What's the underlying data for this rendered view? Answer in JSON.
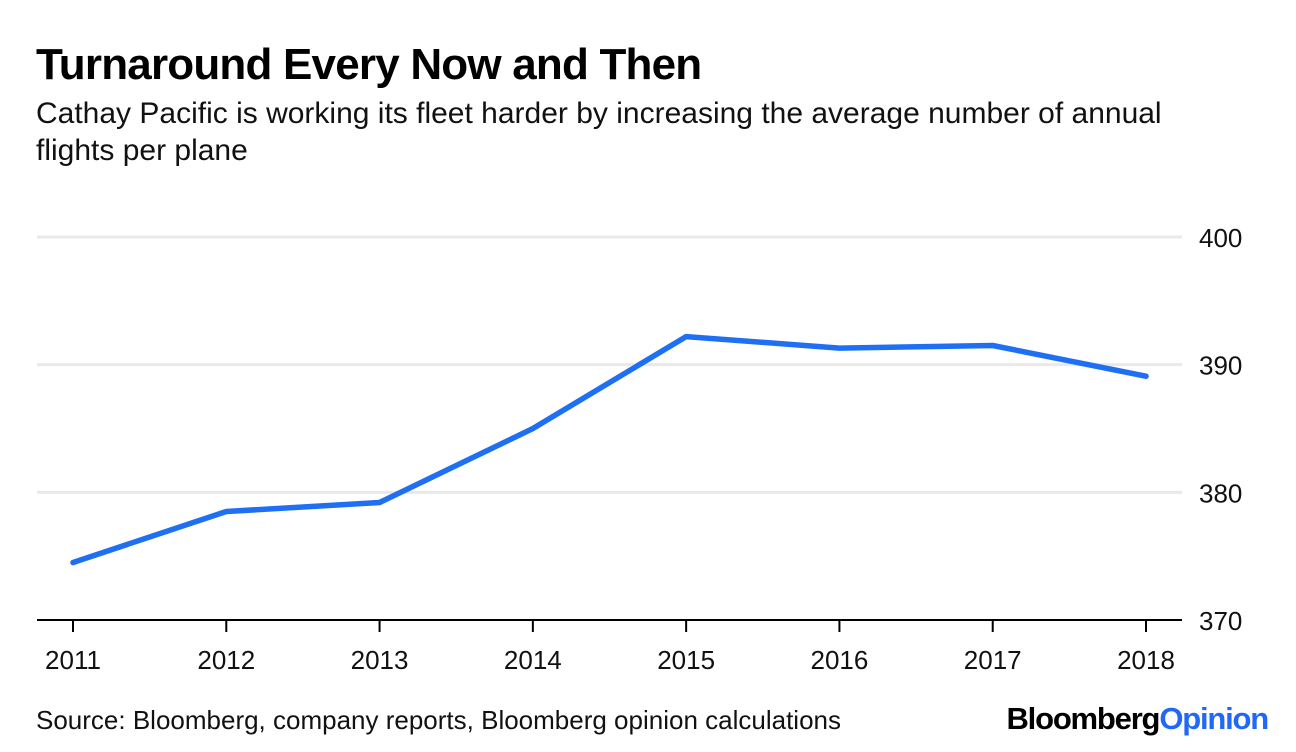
{
  "chart_data": {
    "type": "line",
    "title": "Turnaround Every Now and Then",
    "subtitle": "Cathay Pacific is working its fleet harder by increasing the average number of annual flights per plane",
    "categories": [
      "2011",
      "2012",
      "2013",
      "2014",
      "2015",
      "2016",
      "2017",
      "2018"
    ],
    "series": [
      {
        "name": "Average annual flights per plane",
        "color": "#1f6ff5",
        "values": [
          374.5,
          378.5,
          379.2,
          385.0,
          392.2,
          391.3,
          391.5,
          389.1
        ]
      }
    ],
    "ylim": [
      370,
      400
    ],
    "yticks": [
      "370",
      "380",
      "390",
      "400"
    ],
    "ytick_values": [
      370,
      380,
      390,
      400
    ],
    "xlabel": "",
    "ylabel": "",
    "grid": true,
    "y_axis_side": "right",
    "source": "Source: Bloomberg, company reports, Bloomberg opinion calculations",
    "brand": {
      "part1": "Bloomberg",
      "part2": "Opinion"
    }
  }
}
